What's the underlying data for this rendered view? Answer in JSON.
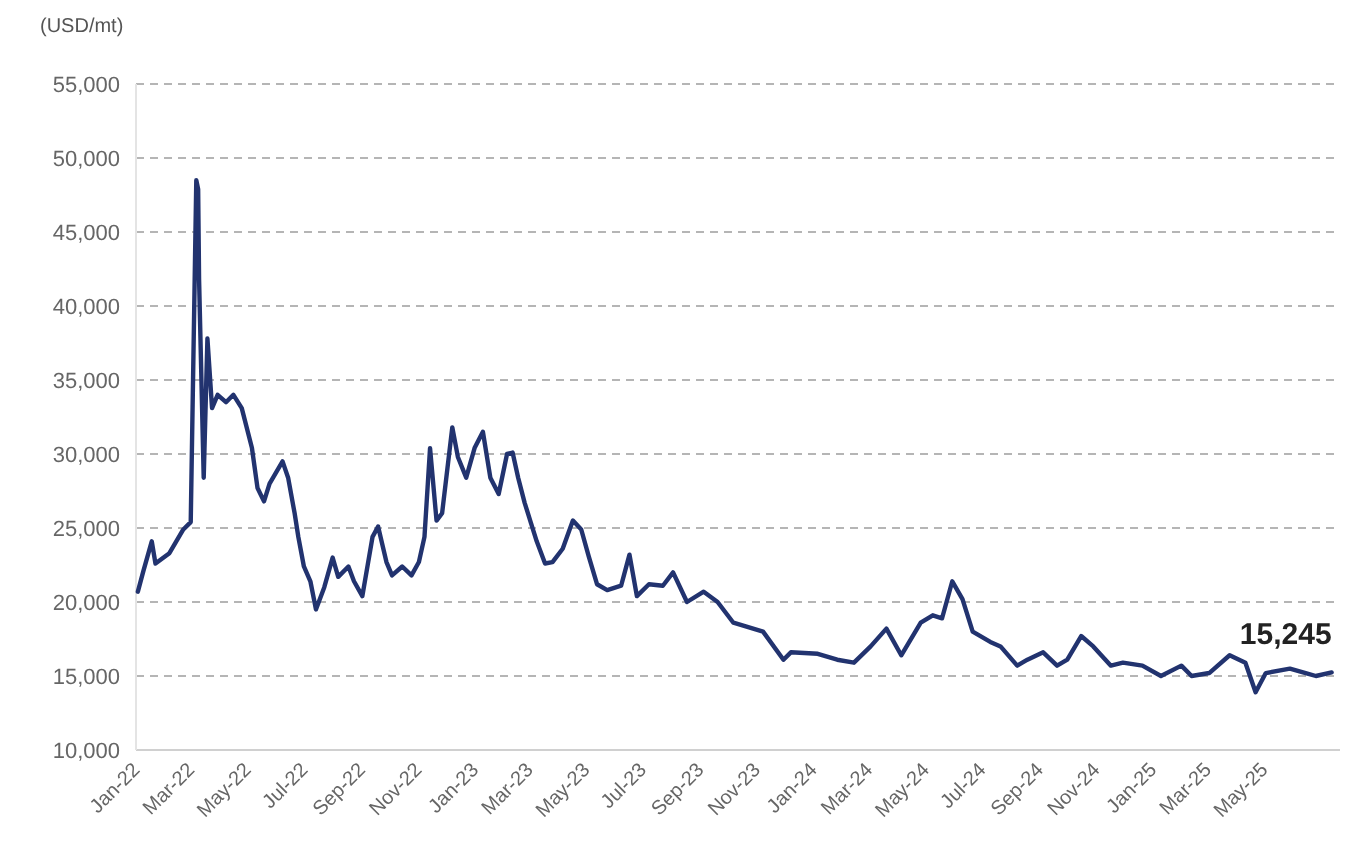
{
  "chart_data": {
    "type": "line",
    "ylabel": "(USD/mt)",
    "xlim": [
      "2022-01-01",
      "2025-07-22"
    ],
    "xticks": [
      {
        "value": "2022-01",
        "label": "Jan-22"
      },
      {
        "value": "2022-03",
        "label": "Mar-22"
      },
      {
        "value": "2022-05",
        "label": "May-22"
      },
      {
        "value": "2022-07",
        "label": "Jul-22"
      },
      {
        "value": "2022-09",
        "label": "Sep-22"
      },
      {
        "value": "2022-11",
        "label": "Nov-22"
      },
      {
        "value": "2023-01",
        "label": "Jan-23"
      },
      {
        "value": "2023-03",
        "label": "Mar-23"
      },
      {
        "value": "2023-05",
        "label": "May-23"
      },
      {
        "value": "2023-07",
        "label": "Jul-23"
      },
      {
        "value": "2023-09",
        "label": "Sep-23"
      },
      {
        "value": "2023-11",
        "label": "Nov-23"
      },
      {
        "value": "2024-01",
        "label": "Jan-24"
      },
      {
        "value": "2024-03",
        "label": "Mar-24"
      },
      {
        "value": "2024-05",
        "label": "May-24"
      },
      {
        "value": "2024-07",
        "label": "Jul-24"
      },
      {
        "value": "2024-09",
        "label": "Sep-24"
      },
      {
        "value": "2024-11",
        "label": "Nov-24"
      },
      {
        "value": "2025-01",
        "label": "Jan-25"
      },
      {
        "value": "2025-03",
        "label": "Mar-25"
      },
      {
        "value": "2025-05",
        "label": "May-25"
      }
    ],
    "ylim": [
      10000,
      55000
    ],
    "yticks": [
      {
        "value": 10000,
        "label": "10,000"
      },
      {
        "value": 15000,
        "label": "15,000"
      },
      {
        "value": 20000,
        "label": "20,000"
      },
      {
        "value": 25000,
        "label": "25,000"
      },
      {
        "value": 30000,
        "label": "30,000"
      },
      {
        "value": 35000,
        "label": "35,000"
      },
      {
        "value": 40000,
        "label": "40,000"
      },
      {
        "value": 45000,
        "label": "45,000"
      },
      {
        "value": 50000,
        "label": "50,000"
      },
      {
        "value": 55000,
        "label": "55,000"
      }
    ],
    "grid": "y",
    "marker": "none",
    "line_style": "solid",
    "annotations": [
      {
        "text": "15,245",
        "x": "2025-07-13",
        "y": 15245
      }
    ],
    "series": [
      {
        "color": "#22336f",
        "x": [
          "2022-01-03",
          "2022-01-09",
          "2022-01-18",
          "2022-01-22",
          "2022-02-06",
          "2022-02-21",
          "2022-03-01",
          "2022-03-07",
          "2022-03-09",
          "2022-03-10",
          "2022-03-15",
          "2022-03-19",
          "2022-03-24",
          "2022-03-30",
          "2022-04-08",
          "2022-04-16",
          "2022-04-25",
          "2022-05-06",
          "2022-05-12",
          "2022-05-19",
          "2022-05-25",
          "2022-06-08",
          "2022-06-14",
          "2022-06-21",
          "2022-06-25",
          "2022-07-01",
          "2022-07-08",
          "2022-07-14",
          "2022-07-23",
          "2022-08-01",
          "2022-08-07",
          "2022-08-18",
          "2022-08-24",
          "2022-09-02",
          "2022-09-13",
          "2022-09-19",
          "2022-09-28",
          "2022-10-04",
          "2022-10-15",
          "2022-10-25",
          "2022-11-02",
          "2022-11-08",
          "2022-11-14",
          "2022-11-21",
          "2022-11-27",
          "2022-12-08",
          "2022-12-14",
          "2022-12-23",
          "2023-01-01",
          "2023-01-10",
          "2023-01-18",
          "2023-01-27",
          "2023-02-05",
          "2023-02-11",
          "2023-02-17",
          "2023-02-24",
          "2023-03-03",
          "2023-03-09",
          "2023-03-18",
          "2023-03-26",
          "2023-04-06",
          "2023-04-17",
          "2023-04-26",
          "2023-05-04",
          "2023-05-13",
          "2023-05-24",
          "2023-06-08",
          "2023-06-17",
          "2023-06-25",
          "2023-07-08",
          "2023-07-23",
          "2023-08-03",
          "2023-08-18",
          "2023-09-05",
          "2023-09-20",
          "2023-10-07",
          "2023-11-08",
          "2023-11-30",
          "2023-12-08",
          "2024-01-06",
          "2024-01-27",
          "2024-02-14",
          "2024-03-03",
          "2024-03-20",
          "2024-04-05",
          "2024-04-26",
          "2024-05-09",
          "2024-05-19",
          "2024-05-30",
          "2024-06-10",
          "2024-06-21",
          "2024-07-10",
          "2024-07-21",
          "2024-08-08",
          "2024-08-19",
          "2024-09-05",
          "2024-09-20",
          "2024-10-01",
          "2024-10-16",
          "2024-10-29",
          "2024-11-17",
          "2024-11-30",
          "2024-12-21",
          "2025-01-10",
          "2025-02-01",
          "2025-02-12",
          "2025-03-03",
          "2025-03-25",
          "2025-04-11",
          "2025-04-22",
          "2025-05-03",
          "2025-05-29",
          "2025-06-15",
          "2025-06-26",
          "2025-07-13"
        ],
        "values": [
          20700,
          22100,
          24100,
          22600,
          23300,
          24900,
          25400,
          48500,
          47900,
          41800,
          28400,
          37800,
          33100,
          34000,
          33500,
          34000,
          33100,
          30400,
          27700,
          26800,
          28000,
          29500,
          28400,
          26000,
          24400,
          22400,
          21400,
          19500,
          21000,
          23000,
          21700,
          22400,
          21400,
          20400,
          24400,
          25100,
          22700,
          21800,
          22400,
          21800,
          22700,
          24400,
          30400,
          25500,
          26000,
          31800,
          29800,
          28400,
          30400,
          31500,
          28400,
          27300,
          30000,
          30100,
          28400,
          26700,
          25300,
          24100,
          22600,
          22700,
          23600,
          25500,
          24900,
          23100,
          21200,
          20800,
          21100,
          23200,
          20400,
          21200,
          21100,
          22000,
          20000,
          20700,
          20000,
          18600,
          18000,
          16100,
          16600,
          16500,
          16100,
          15900,
          17000,
          18200,
          16400,
          18600,
          19100,
          18900,
          21400,
          20200,
          18000,
          17300,
          17000,
          15700,
          16100,
          16600,
          15700,
          16100,
          17700,
          17000,
          15700,
          15900,
          15700,
          15000,
          15700,
          15000,
          15200,
          16400,
          15900,
          13900,
          15200,
          15500,
          15200,
          15000,
          15245
        ]
      }
    ]
  }
}
